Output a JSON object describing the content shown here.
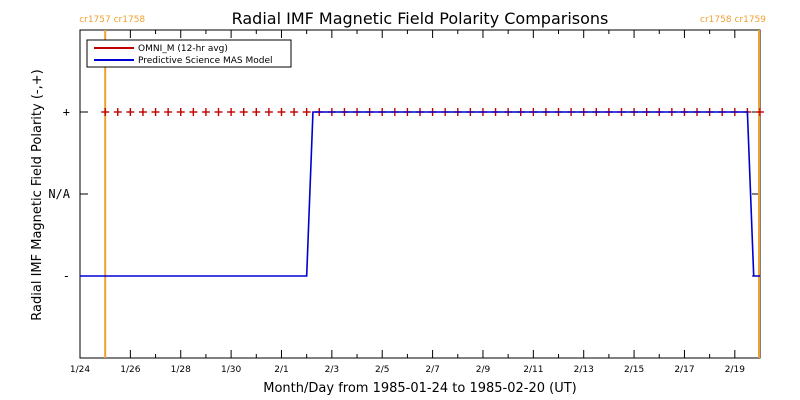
{
  "chart_data": {
    "type": "line",
    "title": "Radial IMF Magnetic Field Polarity Comparisons",
    "xlabel": "Month/Day from 1985-01-24 to 1985-02-20 (UT)",
    "ylabel": "Radial IMF Magnetic Field Polarity (-,+)",
    "x_range": [
      "1985-01-24",
      "1985-02-20"
    ],
    "x_ticks": [
      "1/24",
      "1/26",
      "1/28",
      "1/30",
      "2/1",
      "2/3",
      "2/5",
      "2/7",
      "2/9",
      "2/11",
      "2/13",
      "2/15",
      "2/17",
      "2/19"
    ],
    "y_ticks": [
      "-",
      "N/A",
      "+"
    ],
    "y_tick_values": [
      -1,
      0,
      1
    ],
    "ylim": [
      -2,
      2
    ],
    "grid": false,
    "legend_position": "top-left",
    "carrington_markers": [
      {
        "date": "1985-01-25",
        "labels": [
          "cr1757",
          "cr1758"
        ],
        "color": "#f0a030"
      },
      {
        "date": "1985-02-20",
        "labels": [
          "cr1758",
          "cr1759"
        ],
        "color": "#f0a030"
      }
    ],
    "series": [
      {
        "name": "OMNI_M (12-hr avg)",
        "color": "#c00000",
        "marker": "+",
        "x_start": "1985-01-25",
        "x_step_days": 0.5,
        "values": [
          1,
          1,
          1,
          1,
          1,
          1,
          1,
          1,
          1,
          1,
          1,
          1,
          1,
          1,
          1,
          1,
          1,
          1,
          1,
          1,
          1,
          1,
          1,
          1,
          1,
          1,
          1,
          1,
          1,
          1,
          1,
          1,
          1,
          1,
          1,
          1,
          1,
          1,
          1,
          1,
          1,
          1,
          1,
          1,
          1,
          1,
          1,
          1,
          1,
          1,
          1,
          1,
          1,
          1,
          1
        ]
      },
      {
        "name": "Predictive Science MAS Model",
        "color": "#0000d0",
        "points": [
          [
            "1985-01-24",
            -1
          ],
          [
            "1985-02-02",
            -1
          ],
          [
            "1985-02-02 06:00",
            1
          ],
          [
            "1985-02-19 12:00",
            1
          ],
          [
            "1985-02-19 18:00",
            -1
          ],
          [
            "1985-02-20",
            -1
          ]
        ]
      }
    ]
  }
}
